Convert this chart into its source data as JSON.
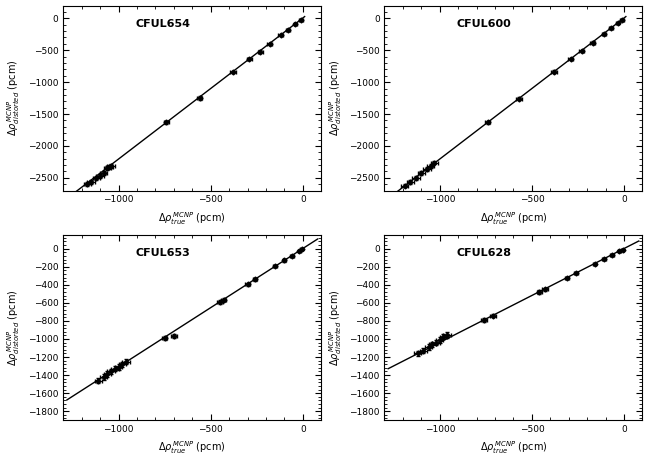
{
  "panels": [
    {
      "label": "CFUL654",
      "xlim": [
        -1300,
        100
      ],
      "ylim": [
        -2700,
        200
      ],
      "xticks": [
        -1000,
        -500,
        0
      ],
      "yticks": [
        -2500,
        -2000,
        -1500,
        -1000,
        -500,
        0
      ],
      "x": [
        -1170,
        -1150,
        -1120,
        -1100,
        -1080,
        -1060,
        -1050,
        -1040,
        -740,
        -560,
        -380,
        -290,
        -230,
        -180,
        -120,
        -80,
        -40,
        -10
      ],
      "y": [
        -2590,
        -2560,
        -2510,
        -2470,
        -2420,
        -2350,
        -2330,
        -2310,
        -1630,
        -1250,
        -840,
        -640,
        -520,
        -400,
        -265,
        -180,
        -90,
        -25
      ],
      "xerr": [
        20,
        20,
        20,
        20,
        20,
        20,
        20,
        20,
        15,
        15,
        15,
        15,
        15,
        15,
        12,
        12,
        10,
        10
      ],
      "yerr": [
        30,
        30,
        30,
        30,
        30,
        30,
        30,
        30,
        25,
        25,
        20,
        20,
        20,
        20,
        15,
        15,
        15,
        12
      ],
      "slope": 2.21,
      "intercept": 5,
      "fit_x0": -1280,
      "fit_x1": 10
    },
    {
      "label": "CFUL600",
      "xlim": [
        -1300,
        100
      ],
      "ylim": [
        -2700,
        200
      ],
      "xticks": [
        -1000,
        -500,
        0
      ],
      "yticks": [
        -2500,
        -2000,
        -1500,
        -1000,
        -500,
        0
      ],
      "x": [
        -1190,
        -1160,
        -1130,
        -1100,
        -1070,
        -1050,
        -1030,
        -740,
        -570,
        -380,
        -290,
        -230,
        -170,
        -110,
        -70,
        -35,
        -10
      ],
      "y": [
        -2620,
        -2560,
        -2500,
        -2430,
        -2360,
        -2310,
        -2260,
        -1630,
        -1260,
        -835,
        -640,
        -510,
        -380,
        -245,
        -155,
        -78,
        -23
      ],
      "xerr": [
        20,
        20,
        20,
        20,
        20,
        20,
        20,
        15,
        15,
        15,
        15,
        15,
        15,
        12,
        12,
        10,
        10
      ],
      "yerr": [
        30,
        30,
        30,
        30,
        30,
        30,
        30,
        25,
        25,
        20,
        20,
        20,
        20,
        15,
        15,
        12,
        12
      ],
      "slope": 2.21,
      "intercept": 5,
      "fit_x0": -1280,
      "fit_x1": 10
    },
    {
      "label": "CFUL653",
      "xlim": [
        -1300,
        100
      ],
      "ylim": [
        -1900,
        150
      ],
      "xticks": [
        -1000,
        -500,
        0
      ],
      "yticks": [
        -1800,
        -1600,
        -1400,
        -1200,
        -1000,
        -800,
        -600,
        -400,
        -200,
        0
      ],
      "x": [
        -1110,
        -1080,
        -1060,
        -1040,
        -1020,
        -1000,
        -980,
        -960,
        -750,
        -700,
        -450,
        -430,
        -300,
        -260,
        -150,
        -100,
        -60,
        -20,
        -5
      ],
      "y": [
        -1460,
        -1420,
        -1390,
        -1360,
        -1330,
        -1310,
        -1280,
        -1250,
        -985,
        -965,
        -590,
        -565,
        -393,
        -340,
        -195,
        -130,
        -78,
        -26,
        -7
      ],
      "xerr": [
        20,
        20,
        20,
        20,
        20,
        20,
        20,
        20,
        15,
        15,
        15,
        15,
        12,
        12,
        10,
        10,
        10,
        8,
        8
      ],
      "yerr": [
        30,
        30,
        30,
        30,
        30,
        30,
        30,
        30,
        22,
        22,
        18,
        18,
        15,
        15,
        12,
        12,
        10,
        8,
        8
      ],
      "slope": 1.31,
      "intercept": 2,
      "fit_x0": -1280,
      "fit_x1": 80
    },
    {
      "label": "CFUL628",
      "xlim": [
        -1300,
        100
      ],
      "ylim": [
        -1900,
        150
      ],
      "xticks": [
        -1000,
        -500,
        0
      ],
      "yticks": [
        -1800,
        -1600,
        -1400,
        -1200,
        -1000,
        -800,
        -600,
        -400,
        -200,
        0
      ],
      "x": [
        -1120,
        -1090,
        -1060,
        -1040,
        -1020,
        -1000,
        -980,
        -960,
        -760,
        -710,
        -460,
        -430,
        -310,
        -260,
        -160,
        -110,
        -65,
        -25,
        -8
      ],
      "y": [
        -1160,
        -1130,
        -1090,
        -1060,
        -1040,
        -1010,
        -975,
        -955,
        -790,
        -740,
        -480,
        -450,
        -325,
        -270,
        -170,
        -115,
        -68,
        -26,
        -9
      ],
      "xerr": [
        20,
        20,
        20,
        20,
        20,
        20,
        20,
        20,
        15,
        15,
        15,
        15,
        12,
        12,
        10,
        10,
        10,
        8,
        8
      ],
      "yerr": [
        30,
        30,
        30,
        30,
        30,
        30,
        30,
        30,
        22,
        22,
        18,
        18,
        15,
        15,
        12,
        12,
        10,
        8,
        8
      ],
      "slope": 1.04,
      "intercept": 2,
      "fit_x0": -1280,
      "fit_x1": 80
    }
  ],
  "xlabel": "$\\Delta\\rho_{true}^{\\,MCNP}$ (pcm)",
  "ylabel_top": "$\\Delta\\rho_{distorted}^{\\,MCNP}$ (pcm)",
  "ylabel_bot": "$\\Delta\\rho_{distorted}^{\\,MCNP}$ (pcm)",
  "marker": "D",
  "markersize": 2.5,
  "linecolor": "black",
  "markercolor": "black",
  "linewidth": 1.0,
  "elinewidth": 0.7,
  "capsize": 1.5,
  "label_fontsize": 7,
  "tick_fontsize": 6.5,
  "annot_fontsize": 8
}
